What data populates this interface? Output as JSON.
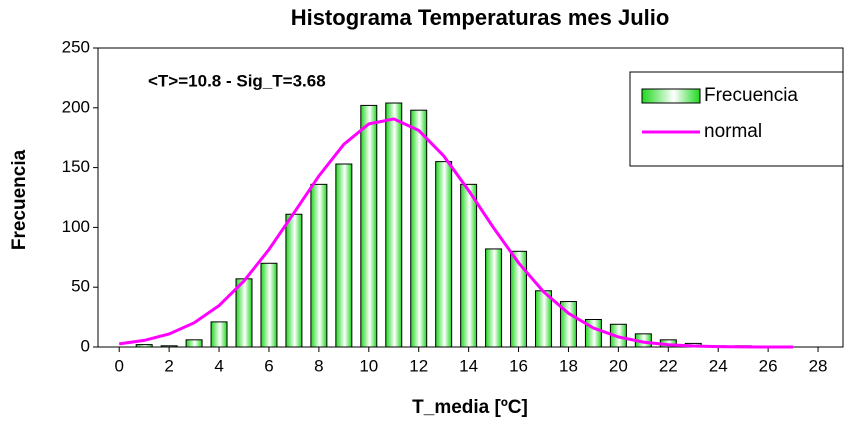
{
  "chart_data": {
    "type": "bar",
    "title": "Histograma Temperaturas mes Julio",
    "xlabel": "T_media [ºC]",
    "ylabel": "Frecuencia",
    "annotation": "<T>=10.8  - Sig_T=3.68",
    "x": [
      1,
      2,
      3,
      4,
      5,
      6,
      7,
      8,
      9,
      10,
      11,
      12,
      13,
      14,
      15,
      16,
      17,
      18,
      19,
      20,
      21,
      22,
      23,
      24,
      25,
      26,
      27
    ],
    "series": [
      {
        "name": "Frecuencia",
        "type": "bar",
        "color": "#1ed81e",
        "values": [
          2,
          1,
          6,
          21,
          57,
          70,
          111,
          136,
          153,
          202,
          204,
          198,
          155,
          136,
          82,
          80,
          47,
          38,
          23,
          19,
          11,
          6,
          3,
          1,
          1,
          0,
          0
        ]
      },
      {
        "name": "normal",
        "type": "line",
        "color": "#ff00ff",
        "x": [
          0,
          1,
          2,
          3,
          4,
          5,
          6,
          7,
          8,
          9,
          10,
          11,
          12,
          13,
          14,
          15,
          16,
          17,
          18,
          19,
          20,
          21,
          22,
          23,
          24,
          25,
          26,
          27
        ],
        "values": [
          2.6,
          5.5,
          10.9,
          20.2,
          34.6,
          55.2,
          81.5,
          112.1,
          143.0,
          169.5,
          186.5,
          190.7,
          181.1,
          159.8,
          130.9,
          99.6,
          70.4,
          46.2,
          28.2,
          15.9,
          8.4,
          4.1,
          1.9,
          0.8,
          0.3,
          0.1,
          0,
          0
        ]
      }
    ],
    "xlim": [
      -0.85,
      29
    ],
    "xticks": [
      0,
      2,
      4,
      6,
      8,
      10,
      12,
      14,
      16,
      18,
      20,
      22,
      24,
      26,
      28
    ],
    "ylim": [
      0,
      250
    ],
    "yticks": [
      0,
      50,
      100,
      150,
      200,
      250
    ],
    "grid": false,
    "legend": "upper right"
  }
}
